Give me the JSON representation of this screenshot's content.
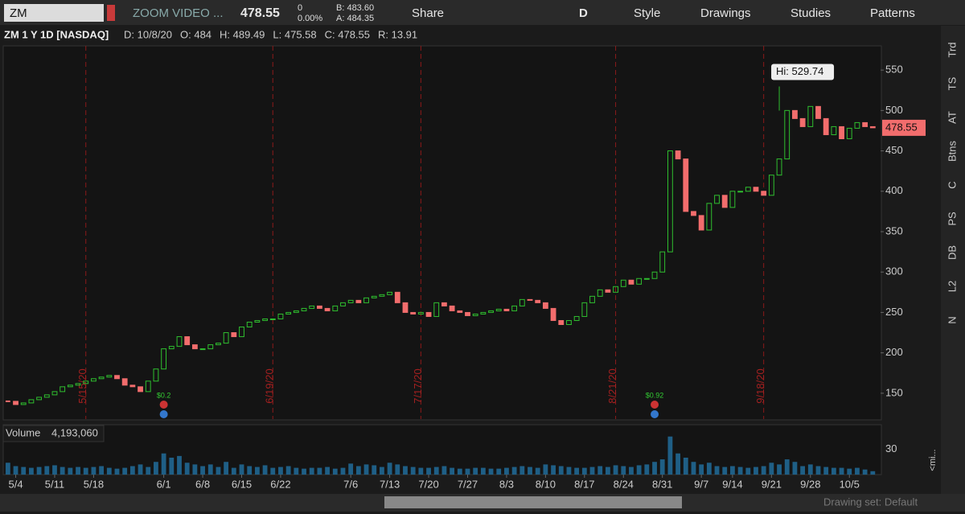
{
  "toolbar": {
    "symbol": "ZM",
    "name": "ZOOM VIDEO ...",
    "last": "478.55",
    "change": "0",
    "change_pct": "0.00%",
    "bid": "B: 483.60",
    "ask": "A: 484.35",
    "share": "Share",
    "period": "D",
    "style": "Style",
    "drawings": "Drawings",
    "studies": "Studies",
    "patterns": "Patterns"
  },
  "side_tabs": [
    "Trd",
    "TS",
    "AT",
    "Btns",
    "C",
    "PS",
    "DB",
    "L2",
    "N"
  ],
  "volume_tab": "<mi...",
  "footer": {
    "drawing_set": "Drawing set: Default"
  },
  "chart_data": {
    "type": "candlestick",
    "title": "ZM 1 Y 1D [NASDAQ]",
    "info": [
      "D: 10/8/20",
      "O: 484",
      "H: 489.49",
      "L: 475.58",
      "C: 478.55",
      "R: 13.91"
    ],
    "close": [
      140,
      136,
      138,
      142,
      145,
      148,
      152,
      158,
      160,
      162,
      165,
      168,
      170,
      172,
      168,
      160,
      158,
      152,
      165,
      180,
      205,
      208,
      220,
      210,
      205,
      205,
      210,
      212,
      225,
      220,
      232,
      238,
      240,
      242,
      242,
      248,
      250,
      252,
      255,
      258,
      255,
      252,
      258,
      262,
      265,
      262,
      268,
      270,
      272,
      275,
      262,
      250,
      248,
      250,
      245,
      262,
      258,
      252,
      250,
      246,
      248,
      250,
      252,
      254,
      252,
      258,
      266,
      265,
      262,
      255,
      240,
      235,
      240,
      245,
      262,
      270,
      278,
      275,
      282,
      290,
      285,
      292,
      292,
      300,
      325,
      450,
      440,
      375,
      370,
      352,
      385,
      395,
      380,
      400,
      400,
      405,
      400,
      395,
      420,
      440,
      500,
      490,
      480,
      505,
      490,
      470,
      480,
      465,
      478,
      485,
      480,
      478.55
    ],
    "volume": [
      14,
      10,
      9,
      8,
      9,
      10,
      11,
      9,
      8,
      9,
      8,
      9,
      10,
      8,
      7,
      8,
      10,
      12,
      9,
      15,
      25,
      20,
      22,
      14,
      12,
      10,
      12,
      9,
      15,
      8,
      12,
      10,
      9,
      11,
      8,
      9,
      10,
      8,
      7,
      8,
      8,
      9,
      7,
      8,
      13,
      10,
      12,
      11,
      9,
      14,
      12,
      10,
      9,
      8,
      8,
      9,
      10,
      8,
      7,
      7,
      8,
      8,
      7,
      7,
      8,
      9,
      10,
      9,
      8,
      12,
      11,
      10,
      9,
      8,
      8,
      9,
      10,
      9,
      11,
      10,
      9,
      11,
      12,
      15,
      18,
      45,
      25,
      20,
      15,
      12,
      14,
      10,
      9,
      10,
      9,
      8,
      9,
      10,
      14,
      12,
      18,
      15,
      10,
      12,
      10,
      9,
      8,
      8,
      7,
      8,
      6,
      4
    ],
    "ylim": [
      118,
      580
    ],
    "yticks": [
      150,
      200,
      250,
      300,
      350,
      400,
      450,
      500,
      550
    ],
    "xlim": [
      -0.5,
      112
    ],
    "xticks": [
      {
        "value": 1,
        "label": "5/4"
      },
      {
        "value": 6,
        "label": "5/11"
      },
      {
        "value": 11,
        "label": "5/18"
      },
      {
        "value": 20,
        "label": "6/1"
      },
      {
        "value": 25,
        "label": "6/8"
      },
      {
        "value": 30,
        "label": "6/15"
      },
      {
        "value": 35,
        "label": "6/22"
      },
      {
        "value": 44,
        "label": "7/6"
      },
      {
        "value": 49,
        "label": "7/13"
      },
      {
        "value": 54,
        "label": "7/20"
      },
      {
        "value": 59,
        "label": "7/27"
      },
      {
        "value": 64,
        "label": "8/3"
      },
      {
        "value": 69,
        "label": "8/10"
      },
      {
        "value": 74,
        "label": "8/17"
      },
      {
        "value": 79,
        "label": "8/24"
      },
      {
        "value": 84,
        "label": "8/31"
      },
      {
        "value": 89,
        "label": "9/7"
      },
      {
        "value": 93,
        "label": "9/14"
      },
      {
        "value": 98,
        "label": "9/21"
      },
      {
        "value": 103,
        "label": "9/28"
      },
      {
        "value": 108,
        "label": "10/5"
      }
    ],
    "events": [
      {
        "index": 10,
        "label": "5/15/20"
      },
      {
        "index": 34,
        "label": "6/19/20"
      },
      {
        "index": 53,
        "label": "7/17/20"
      },
      {
        "index": 78,
        "label": "8/21/20"
      },
      {
        "index": 97,
        "label": "9/18/20"
      }
    ],
    "dividends": [
      {
        "index": 20,
        "label": "$0.2"
      },
      {
        "index": 83,
        "label": "$0.92"
      }
    ],
    "high": {
      "index": 99,
      "value": 529.74,
      "label": "Hi: 529.74"
    },
    "last_price": {
      "value": 478.55,
      "label": "478.55"
    },
    "volume_label": "Volume",
    "volume_value": "4,193,060",
    "vlim": [
      0,
      58
    ],
    "vticks": [
      30
    ]
  }
}
